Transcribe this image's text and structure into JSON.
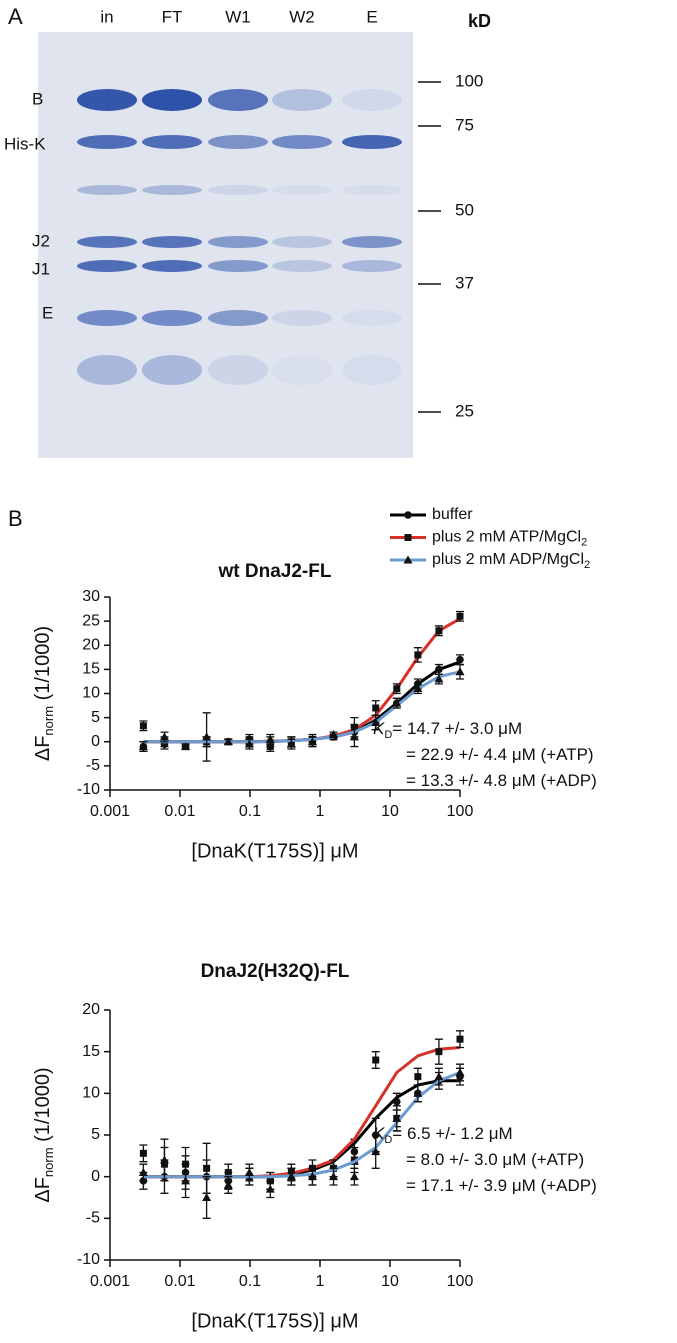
{
  "panel_a": {
    "label": "A",
    "lanes": [
      "in",
      "FT",
      "W1",
      "W2",
      "E"
    ],
    "unit": "kD",
    "markers": [
      "100",
      "75",
      "50",
      "37",
      "25"
    ],
    "bands": [
      "B",
      "His-K",
      "J2",
      "J1",
      "E"
    ]
  },
  "panel_b": {
    "label": "B"
  },
  "chart_data": [
    {
      "type": "scatter",
      "title": "wt DnaJ2-FL",
      "xscale": "log",
      "x_label": "[DnaK(T175S)] μM",
      "y_label": {
        "main": "ΔF",
        "sub": "norm",
        "rest": " (1/1000)"
      },
      "x": [
        0.003,
        0.006,
        0.012,
        0.024,
        0.049,
        0.098,
        0.195,
        0.39,
        0.78,
        1.56,
        3.1,
        6.25,
        12.5,
        25,
        50,
        100
      ],
      "xlim": [
        0.001,
        100
      ],
      "xticks": [
        0.001,
        0.01,
        0.1,
        1,
        10,
        100
      ],
      "ylim": [
        -10,
        30
      ],
      "yticks": [
        -10,
        -5,
        0,
        5,
        10,
        15,
        20,
        25,
        30
      ],
      "series": [
        {
          "name": "buffer",
          "color": "#000000",
          "marker": "circle",
          "values": [
            -1,
            -0.5,
            -0.5,
            0,
            0,
            0.5,
            0,
            0,
            0,
            1,
            2,
            4,
            8,
            12,
            15,
            17
          ],
          "errors": [
            1,
            1,
            0.5,
            1,
            0.5,
            1,
            1,
            1,
            1,
            0.5,
            1.5,
            1.5,
            1,
            1,
            1,
            1
          ],
          "fit": [
            0,
            0,
            0,
            0,
            0,
            0,
            0.1,
            0.2,
            0.5,
            1,
            2,
            4.5,
            8,
            12,
            15,
            16.5
          ]
        },
        {
          "name": "plus 2 mM ATP/MgCl",
          "name_sub": "2",
          "color": "#d7312a",
          "marker": "square",
          "values": [
            3.3,
            0,
            -1,
            0,
            0,
            0,
            -1,
            0,
            0.5,
            1,
            3,
            7,
            11,
            18,
            23,
            26
          ],
          "errors": [
            1,
            1,
            0.5,
            1,
            0.5,
            1,
            1,
            1,
            1,
            0.5,
            2,
            1.5,
            1,
            1.5,
            1,
            1
          ],
          "fit": [
            0,
            0,
            0,
            0,
            0,
            0,
            0.1,
            0.2,
            0.5,
            1.2,
            2.5,
            5.5,
            11,
            17.5,
            23,
            25.5
          ]
        },
        {
          "name": "plus 2 mM ADP/MgCl",
          "name_sub": "2",
          "color": "#6b9bd1",
          "marker": "triangle",
          "values": [
            -1,
            1,
            -1,
            1,
            0,
            -0.5,
            0.5,
            -0.5,
            0,
            1.5,
            1,
            4,
            8,
            11,
            13,
            14.5
          ],
          "errors": [
            1,
            1,
            0.5,
            5,
            0.5,
            1,
            1,
            1,
            1,
            0.5,
            2,
            1.5,
            1,
            1,
            1,
            1.5
          ],
          "fit": [
            0,
            0,
            0,
            0,
            0,
            0,
            0,
            0.2,
            0.5,
            1,
            2,
            4,
            7.5,
            11,
            13.5,
            14.5
          ]
        }
      ],
      "annotations": [
        {
          "k": "K",
          "sub": "D",
          "text": "= 14.7 +/- 3.0 μM"
        },
        {
          "text": "= 22.9 +/- 4.4 μM (+ATP)"
        },
        {
          "text": "= 13.3 +/- 4.8 μM (+ADP)"
        }
      ]
    },
    {
      "type": "scatter",
      "title": "DnaJ2(H32Q)-FL",
      "xscale": "log",
      "x_label": "[DnaK(T175S)] μM",
      "y_label": {
        "main": "ΔF",
        "sub": "norm",
        "rest": " (1/1000)"
      },
      "x": [
        0.003,
        0.006,
        0.012,
        0.024,
        0.049,
        0.098,
        0.195,
        0.39,
        0.78,
        1.56,
        3.1,
        6.25,
        12.5,
        25,
        50,
        100
      ],
      "xlim": [
        0.001,
        100
      ],
      "xticks": [
        0.001,
        0.01,
        0.1,
        1,
        10,
        100
      ],
      "ylim": [
        -10,
        20
      ],
      "yticks": [
        -10,
        -5,
        0,
        5,
        10,
        15,
        20
      ],
      "series": [
        {
          "color": "#000000",
          "marker": "circle",
          "values": [
            -0.5,
            0,
            0.5,
            0,
            -0.5,
            0,
            -0.5,
            0,
            0,
            1,
            3,
            5,
            9,
            10,
            11.5,
            12
          ],
          "errors": [
            1,
            2,
            2,
            2,
            1,
            1,
            1,
            1,
            1,
            1,
            1.5,
            2,
            1,
            1,
            1,
            1
          ],
          "fit": [
            0,
            0,
            0,
            0,
            0,
            0,
            0,
            0.3,
            0.8,
            1.8,
            4,
            7,
            9.5,
            11,
            11.5,
            11.5
          ]
        },
        {
          "color": "#d7312a",
          "marker": "square",
          "values": [
            2.8,
            1.5,
            1.5,
            1,
            0.5,
            0,
            -0.5,
            0.5,
            1,
            1,
            2,
            14,
            7,
            12,
            15,
            16.5
          ],
          "errors": [
            1,
            2,
            2,
            3,
            1,
            1,
            1,
            1,
            1,
            1,
            1.5,
            1,
            1,
            1,
            1.5,
            1
          ],
          "fit": [
            0,
            0,
            0,
            0,
            0,
            0,
            0.1,
            0.4,
            1,
            2,
            4.5,
            8.5,
            12.5,
            14.5,
            15.3,
            15.5
          ]
        },
        {
          "color": "#6b9bd1",
          "marker": "triangle",
          "values": [
            0.5,
            2,
            -0.5,
            -2.5,
            -1,
            0.5,
            -1.5,
            0,
            0,
            0,
            0,
            3,
            7,
            10,
            12,
            12.5
          ],
          "errors": [
            1,
            2.5,
            2,
            2.5,
            1,
            1,
            1,
            1,
            1,
            1,
            1,
            2,
            1.5,
            1,
            1,
            1
          ],
          "fit": [
            0,
            0,
            0,
            0,
            0,
            0,
            0,
            0.1,
            0.3,
            0.8,
            1.8,
            3.5,
            6.5,
            9.5,
            11.5,
            12.5
          ]
        }
      ],
      "annotations": [
        {
          "k": "K",
          "sub": "D",
          "text": "= 6.5 +/- 1.2 μM"
        },
        {
          "text": "= 8.0 +/- 3.0 μM (+ATP)"
        },
        {
          "text": "= 17.1 +/- 3.9 μM (+ADP)"
        }
      ]
    }
  ]
}
